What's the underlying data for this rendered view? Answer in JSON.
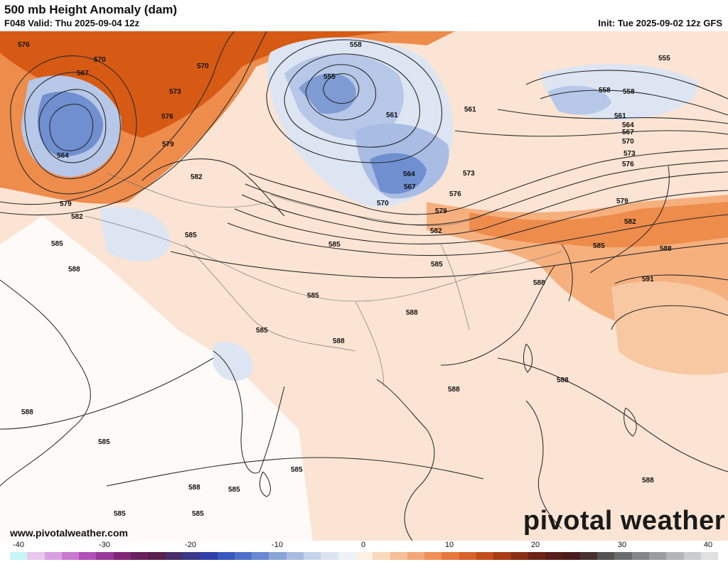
{
  "header": {
    "title": "500 mb Height Anomaly (dam)",
    "valid": "F048 Valid: Thu 2025-09-04 12z",
    "init": "Init: Tue 2025-09-02 12z GFS"
  },
  "footer": {
    "website": "www.pivotalweather.com",
    "brand": "pivotal weather"
  },
  "colorbar": {
    "ticks": [
      "-40",
      "-30",
      "-20",
      "-10",
      "0",
      "10",
      "20",
      "30",
      "40"
    ],
    "colors": [
      "#c8f5f5",
      "#e8c8ee",
      "#d8a0e0",
      "#c878d0",
      "#b050b8",
      "#983898",
      "#802878",
      "#6a2060",
      "#5a2050",
      "#4a2e6a",
      "#3a3a8a",
      "#3040a8",
      "#3a58c0",
      "#5070c8",
      "#6a88d0",
      "#8aa4d8",
      "#a8bce0",
      "#c4d2ea",
      "#dce4f2",
      "#eef2f8",
      "#fdf0e4",
      "#fad8bc",
      "#f6c098",
      "#f2a876",
      "#ee9058",
      "#e6783e",
      "#d8622a",
      "#c24e1c",
      "#a83c16",
      "#8a2e14",
      "#6e2416",
      "#5a1e1a",
      "#4a1c1e",
      "#4a3030",
      "#555252",
      "#6a6c6e",
      "#828486",
      "#9a9c9e",
      "#b2b4b6",
      "#cacccd",
      "#e0e0e0"
    ]
  },
  "map": {
    "colors": {
      "deep_orange": "#d65a14",
      "orange": "#ec8a48",
      "light_orange": "#f6b586",
      "pale_orange": "#fbdcc4",
      "blue": "#6f8fd0",
      "light_blue": "#b7c7e8",
      "pale_blue": "#dde5f3"
    },
    "contour_labels": [
      "576",
      "570",
      "567",
      "564",
      "570",
      "573",
      "576",
      "579",
      "582",
      "579",
      "582",
      "585",
      "585",
      "588",
      "558",
      "555",
      "561",
      "561",
      "564",
      "567",
      "570",
      "573",
      "576",
      "579",
      "582",
      "585",
      "585",
      "585",
      "585",
      "588",
      "588",
      "588",
      "588",
      "588",
      "555",
      "558",
      "558",
      "561",
      "564",
      "567",
      "570",
      "573",
      "576",
      "579",
      "582",
      "585",
      "588",
      "591",
      "588",
      "588",
      "585",
      "585",
      "585",
      "588",
      "585",
      "585"
    ]
  }
}
